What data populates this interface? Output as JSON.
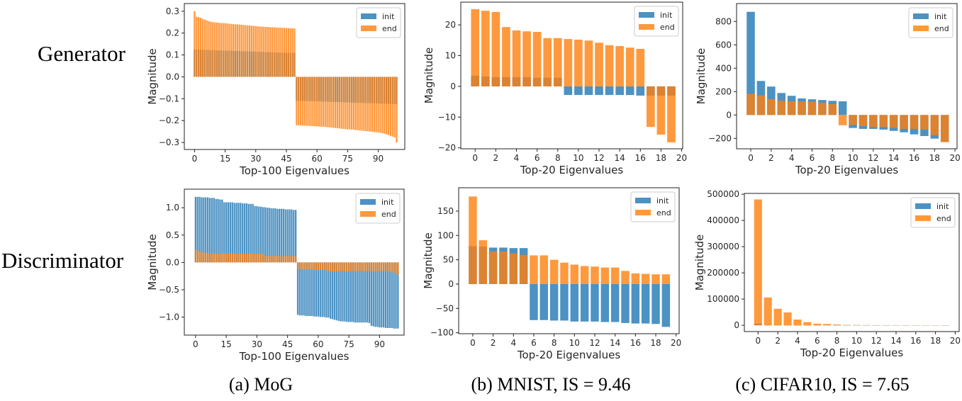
{
  "row_labels": {
    "generator": "Generator",
    "discriminator": "Discriminator"
  },
  "captions": {
    "a": "(a) MoG",
    "b": "(b) MNIST, IS = 9.46",
    "c": "(c) CIFAR10, IS = 7.65"
  },
  "colors": {
    "init": "#1f77b4",
    "end": "#ff7f0e"
  },
  "chart_data": [
    {
      "panel": "Generator MoG",
      "type": "bar",
      "xlabel": "Top-100 Eigenvalues",
      "ylabel": "Magnitude",
      "legend": [
        "init",
        "end"
      ],
      "legend_placement": "top-right",
      "grid": false,
      "xlim": [
        -5,
        103
      ],
      "ylim": [
        -0.332,
        0.335
      ],
      "xticks": [
        0,
        15,
        30,
        45,
        60,
        75,
        90
      ],
      "xtick_labels": [
        "0",
        "15",
        "30",
        "45",
        "60",
        "75",
        "90"
      ],
      "yticks": [
        0.3,
        0.2,
        0.1,
        0.0,
        -0.1,
        -0.2,
        -0.3
      ],
      "ytick_labels": [
        "0.3",
        "0.2",
        "0.1",
        "0.0",
        "−0.1",
        "−0.2",
        "−0.3"
      ],
      "series": [
        {
          "name": "init",
          "values": [
            0.125,
            0.125,
            0.124,
            0.124,
            0.124,
            0.123,
            0.123,
            0.123,
            0.122,
            0.122,
            0.122,
            0.121,
            0.121,
            0.121,
            0.12,
            0.12,
            0.12,
            0.119,
            0.119,
            0.119,
            0.118,
            0.118,
            0.118,
            0.117,
            0.117,
            0.117,
            0.116,
            0.116,
            0.116,
            0.115,
            0.115,
            0.115,
            0.114,
            0.114,
            0.114,
            0.113,
            0.113,
            0.113,
            0.112,
            0.112,
            0.112,
            0.111,
            0.111,
            0.111,
            0.111,
            0.11,
            0.11,
            0.11,
            0.11,
            0.11,
            -0.11,
            -0.11,
            -0.11,
            -0.11,
            -0.11,
            -0.111,
            -0.111,
            -0.111,
            -0.111,
            -0.112,
            -0.112,
            -0.112,
            -0.113,
            -0.113,
            -0.113,
            -0.114,
            -0.114,
            -0.114,
            -0.115,
            -0.115,
            -0.115,
            -0.116,
            -0.116,
            -0.116,
            -0.117,
            -0.117,
            -0.117,
            -0.118,
            -0.118,
            -0.118,
            -0.119,
            -0.119,
            -0.119,
            -0.12,
            -0.12,
            -0.12,
            -0.121,
            -0.121,
            -0.121,
            -0.122,
            -0.122,
            -0.122,
            -0.123,
            -0.123,
            -0.123,
            -0.124,
            -0.124,
            -0.124,
            -0.125,
            -0.125
          ]
        },
        {
          "name": "end",
          "values": [
            0.3,
            0.275,
            0.273,
            0.27,
            0.265,
            0.262,
            0.258,
            0.255,
            0.252,
            0.25,
            0.249,
            0.248,
            0.247,
            0.246,
            0.246,
            0.245,
            0.244,
            0.243,
            0.242,
            0.241,
            0.24,
            0.24,
            0.239,
            0.238,
            0.237,
            0.236,
            0.235,
            0.235,
            0.234,
            0.233,
            0.232,
            0.231,
            0.23,
            0.23,
            0.229,
            0.228,
            0.228,
            0.227,
            0.227,
            0.226,
            0.226,
            0.225,
            0.225,
            0.224,
            0.224,
            0.223,
            0.223,
            0.222,
            0.222,
            0.221,
            -0.221,
            -0.222,
            -0.222,
            -0.223,
            -0.223,
            -0.224,
            -0.224,
            -0.225,
            -0.225,
            -0.226,
            -0.226,
            -0.227,
            -0.228,
            -0.228,
            -0.229,
            -0.23,
            -0.231,
            -0.232,
            -0.233,
            -0.234,
            -0.235,
            -0.236,
            -0.237,
            -0.238,
            -0.239,
            -0.24,
            -0.24,
            -0.241,
            -0.242,
            -0.243,
            -0.244,
            -0.245,
            -0.246,
            -0.247,
            -0.248,
            -0.249,
            -0.25,
            -0.251,
            -0.252,
            -0.253,
            -0.254,
            -0.256,
            -0.258,
            -0.26,
            -0.263,
            -0.266,
            -0.27,
            -0.273,
            -0.277,
            -0.3
          ]
        }
      ]
    },
    {
      "panel": "Generator MNIST",
      "type": "bar",
      "xlabel": "Top-20 Eigenvalues",
      "ylabel": "Magnitude",
      "legend": [
        "init",
        "end"
      ],
      "legend_placement": "top-right",
      "grid": false,
      "xlim": [
        -1.39,
        20.1
      ],
      "ylim": [
        -20.3,
        27.4
      ],
      "xticks": [
        0,
        2,
        4,
        6,
        8,
        10,
        12,
        14,
        16,
        18,
        20
      ],
      "xtick_labels": [
        "0",
        "2",
        "4",
        "6",
        "8",
        "10",
        "12",
        "14",
        "16",
        "18",
        "20"
      ],
      "yticks": [
        20,
        10,
        0,
        -10,
        -20
      ],
      "ytick_labels": [
        "20",
        "10",
        "0",
        "−10",
        "−20"
      ],
      "series": [
        {
          "name": "init",
          "values": [
            3.5,
            3.2,
            3.0,
            3.0,
            3.0,
            3.0,
            2.8,
            2.8,
            2.8,
            -2.8,
            -2.8,
            -2.8,
            -2.8,
            -2.8,
            -2.8,
            -2.8,
            -3.0,
            -3.0,
            -3.0,
            -3.0
          ]
        },
        {
          "name": "end",
          "values": [
            25.1,
            24.6,
            24.2,
            19.3,
            18.2,
            17.9,
            17.7,
            15.7,
            15.7,
            15.4,
            15.2,
            14.9,
            14.2,
            13.4,
            13.1,
            12.6,
            12.2,
            -13.2,
            -15.7,
            -18.2
          ]
        }
      ]
    },
    {
      "panel": "Generator CIFAR10",
      "type": "bar",
      "xlabel": "Top-20 Eigenvalues",
      "ylabel": "Magnitude",
      "legend": [
        "init",
        "end"
      ],
      "legend_placement": "top-right",
      "grid": false,
      "xlim": [
        -1.39,
        20.2
      ],
      "ylim": [
        -289,
        953
      ],
      "xticks": [
        0,
        2,
        4,
        6,
        8,
        10,
        12,
        14,
        16,
        18,
        20
      ],
      "xtick_labels": [
        "0",
        "2",
        "4",
        "6",
        "8",
        "10",
        "12",
        "14",
        "16",
        "18",
        "20"
      ],
      "yticks": [
        800,
        600,
        400,
        200,
        0,
        -200
      ],
      "ytick_labels": [
        "800",
        "600",
        "400",
        "200",
        "0",
        "−200"
      ],
      "series": [
        {
          "name": "init",
          "values": [
            882,
            291,
            243,
            188,
            164,
            142,
            134,
            128,
            121,
            117,
            -111,
            -119,
            -119,
            -125,
            -136,
            -148,
            -166,
            -180,
            -202,
            -228
          ]
        },
        {
          "name": "end",
          "values": [
            182,
            168,
            136,
            123,
            117,
            115,
            115,
            105,
            93,
            -88,
            -85,
            -95,
            -103,
            -103,
            -109,
            -119,
            -119,
            -125,
            -172,
            -233
          ]
        }
      ]
    },
    {
      "panel": "Discriminator MoG",
      "type": "bar",
      "xlabel": "Top-100 Eigenvalues",
      "ylabel": "Magnitude",
      "legend": [
        "init",
        "end"
      ],
      "legend_placement": "top-right",
      "grid": false,
      "xlim": [
        -5.5,
        102
      ],
      "ylim": [
        -1.33,
        1.34
      ],
      "xticks": [
        0,
        15,
        30,
        45,
        60,
        75,
        90
      ],
      "xtick_labels": [
        "0",
        "15",
        "30",
        "45",
        "60",
        "75",
        "90"
      ],
      "yticks": [
        1.0,
        0.5,
        0.0,
        -0.5,
        -1.0
      ],
      "ytick_labels": [
        "1.0",
        "0.5",
        "0.0",
        "−0.5",
        "−1.0"
      ],
      "series": [
        {
          "name": "init",
          "values": [
            1.2,
            1.2,
            1.2,
            1.19,
            1.19,
            1.19,
            1.19,
            1.18,
            1.18,
            1.18,
            1.16,
            1.16,
            1.15,
            1.15,
            1.1,
            1.1,
            1.1,
            1.1,
            1.1,
            1.09,
            1.09,
            1.09,
            1.09,
            1.08,
            1.08,
            1.08,
            1.07,
            1.07,
            1.07,
            1.03,
            1.03,
            1.02,
            1.02,
            1.01,
            1.01,
            1.0,
            1.0,
            0.99,
            0.99,
            0.99,
            0.98,
            0.98,
            0.98,
            0.98,
            0.97,
            0.97,
            0.97,
            0.97,
            0.96,
            0.96,
            -0.96,
            -0.97,
            -0.97,
            -0.97,
            -0.98,
            -0.98,
            -0.98,
            -0.98,
            -0.99,
            -0.99,
            -0.99,
            -1.0,
            -1.0,
            -1.0,
            -1.01,
            -1.01,
            -1.03,
            -1.04,
            -1.05,
            -1.06,
            -1.07,
            -1.08,
            -1.08,
            -1.08,
            -1.09,
            -1.09,
            -1.09,
            -1.09,
            -1.1,
            -1.1,
            -1.1,
            -1.1,
            -1.1,
            -1.1,
            -1.1,
            -1.11,
            -1.16,
            -1.17,
            -1.18,
            -1.18,
            -1.19,
            -1.19,
            -1.19,
            -1.2,
            -1.2,
            -1.2,
            -1.2,
            -1.21,
            -1.21,
            -1.21
          ]
        },
        {
          "name": "end",
          "values": [
            0.23,
            0.21,
            0.2,
            0.19,
            0.18,
            0.17,
            0.17,
            0.16,
            0.16,
            0.16,
            0.16,
            0.16,
            0.16,
            0.16,
            0.16,
            0.16,
            0.16,
            0.16,
            0.16,
            0.16,
            0.16,
            0.16,
            0.16,
            0.16,
            0.16,
            0.16,
            0.16,
            0.16,
            0.16,
            0.16,
            0.16,
            0.16,
            0.16,
            0.16,
            0.12,
            0.12,
            0.12,
            0.12,
            0.12,
            0.12,
            0.12,
            0.12,
            0.12,
            0.12,
            0.12,
            0.12,
            0.12,
            0.12,
            0.12,
            0.12,
            -0.12,
            -0.12,
            -0.13,
            -0.13,
            -0.13,
            -0.13,
            -0.13,
            -0.13,
            -0.13,
            -0.14,
            -0.14,
            -0.14,
            -0.14,
            -0.14,
            -0.14,
            -0.16,
            -0.16,
            -0.16,
            -0.16,
            -0.16,
            -0.16,
            -0.16,
            -0.16,
            -0.16,
            -0.16,
            -0.16,
            -0.16,
            -0.16,
            -0.16,
            -0.16,
            -0.16,
            -0.16,
            -0.16,
            -0.16,
            -0.16,
            -0.16,
            -0.16,
            -0.16,
            -0.16,
            -0.16,
            -0.16,
            -0.16,
            -0.16,
            -0.16,
            -0.16,
            -0.17,
            -0.18,
            -0.19,
            -0.21,
            -0.23
          ]
        }
      ]
    },
    {
      "panel": "Discriminator MNIST",
      "type": "bar",
      "xlabel": "Top-20 Eigenvalues",
      "ylabel": "Magnitude",
      "legend": [
        "init",
        "end"
      ],
      "legend_placement": "top-right",
      "grid": false,
      "xlim": [
        -1.39,
        20.3
      ],
      "ylim": [
        -102,
        198
      ],
      "xticks": [
        0,
        2,
        4,
        6,
        8,
        10,
        12,
        14,
        16,
        18,
        20
      ],
      "xtick_labels": [
        "0",
        "2",
        "4",
        "6",
        "8",
        "10",
        "12",
        "14",
        "16",
        "18",
        "20"
      ],
      "yticks": [
        150,
        100,
        50,
        0,
        -50,
        -100
      ],
      "ytick_labels": [
        "150",
        "100",
        "50",
        "0",
        "−50",
        "−100"
      ],
      "series": [
        {
          "name": "init",
          "values": [
            78,
            77,
            75,
            75,
            74,
            74,
            -74,
            -74,
            -75,
            -75,
            -77,
            -77,
            -77,
            -78,
            -78,
            -80,
            -81,
            -81,
            -82,
            -88
          ]
        },
        {
          "name": "end",
          "values": [
            180,
            90,
            67,
            67,
            63,
            60,
            59,
            59,
            50,
            44,
            40,
            37,
            36,
            34,
            34,
            27,
            22,
            21,
            20,
            20
          ]
        }
      ]
    },
    {
      "panel": "Discriminator CIFAR10",
      "type": "bar",
      "xlabel": "Top-20 Eigenvalues",
      "ylabel": "Magnitude",
      "legend": [
        "init",
        "end"
      ],
      "legend_placement": "top-right",
      "grid": false,
      "xlim": [
        -1.39,
        20.4
      ],
      "ylim": [
        -24000,
        503000
      ],
      "xticks": [
        0,
        2,
        4,
        6,
        8,
        10,
        12,
        14,
        16,
        18,
        20
      ],
      "xtick_labels": [
        "0",
        "2",
        "4",
        "6",
        "8",
        "10",
        "12",
        "14",
        "16",
        "18",
        "20"
      ],
      "yticks": [
        500000,
        400000,
        300000,
        200000,
        100000,
        0
      ],
      "ytick_labels": [
        "500000",
        "400000",
        "300000",
        "200000",
        "100000",
        "0"
      ],
      "series": [
        {
          "name": "init",
          "values": [
            6000,
            400,
            300,
            300,
            200,
            200,
            200,
            150,
            150,
            150,
            100,
            100,
            100,
            100,
            100,
            100,
            100,
            100,
            100,
            100
          ]
        },
        {
          "name": "end",
          "values": [
            480000,
            106000,
            63000,
            49000,
            22000,
            12000,
            6000,
            5000,
            3000,
            1500,
            1200,
            900,
            700,
            600,
            500,
            400,
            300,
            250,
            200,
            150
          ]
        }
      ]
    }
  ]
}
